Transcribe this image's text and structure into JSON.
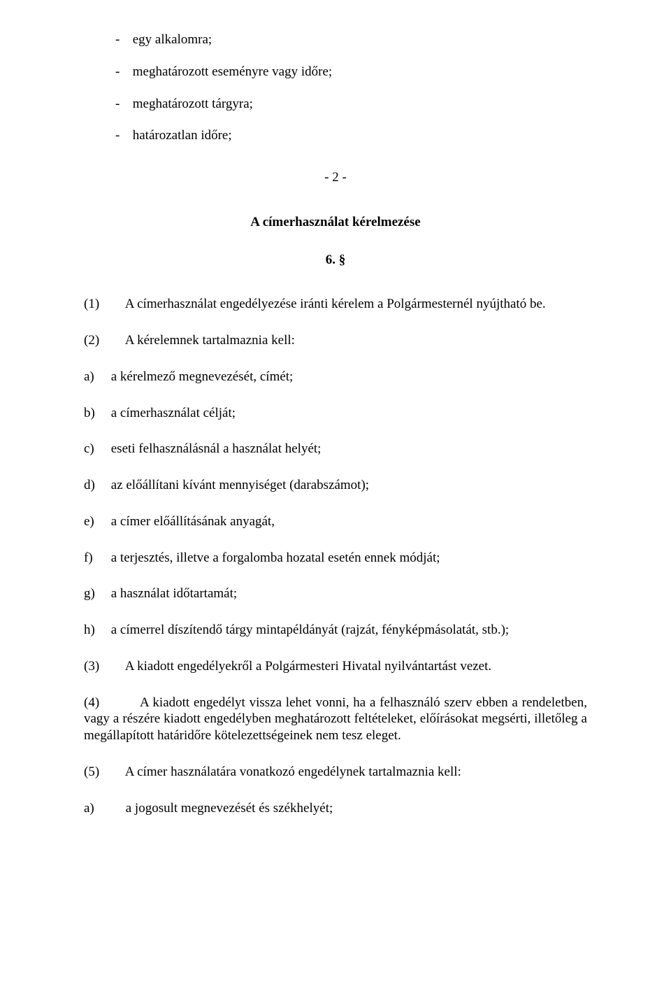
{
  "colors": {
    "text": "#000000",
    "background": "#ffffff"
  },
  "typography": {
    "family": "Times New Roman",
    "base_size_pt": 14
  },
  "dashItems": [
    "egy alkalomra;",
    "meghatározott eseményre vagy időre;",
    "meghatározott tárgyra;",
    "határozatlan időre;"
  ],
  "pageMarker": "- 2 -",
  "sectionTitle": "A címerhasználat kérelmezése",
  "sectionNumber": "6. §",
  "para1": {
    "num": "(1)",
    "text": "A címerhasználat engedélyezése iránti kérelem a Polgármesternél nyújtható be."
  },
  "para2": {
    "num": "(2)",
    "text": "A kérelemnek tartalmaznia kell:"
  },
  "letterItems": [
    {
      "letter": "a)",
      "text": "a kérelmező megnevezését, címét;"
    },
    {
      "letter": "b)",
      "text": "a címerhasználat célját;"
    },
    {
      "letter": "c)",
      "text": "eseti felhasználásnál a használat helyét;"
    },
    {
      "letter": "d)",
      "text": "az előállítani kívánt mennyiséget (darabszámot);"
    },
    {
      "letter": "e)",
      "text": "a címer előállításának anyagát,"
    },
    {
      "letter": "f)",
      "text": " a terjesztés, illetve a forgalomba hozatal esetén ennek módját;"
    },
    {
      "letter": "g)",
      "text": "a használat időtartamát;"
    },
    {
      "letter": "h)",
      "text": "a címerrel díszítendő tárgy mintapéldányát (rajzát, fényképmásolatát, stb.);"
    }
  ],
  "para3": {
    "num": "(3)",
    "text": "A kiadott engedélyekről a Polgármesteri Hivatal nyilvántartást vezet."
  },
  "para4": {
    "num": "(4)",
    "text": "A kiadott engedélyt vissza lehet vonni, ha a felhasználó szerv ebben a rendeletben, vagy a részére kiadott engedélyben meghatározott feltételeket, előírásokat megsérti, illetőleg a megállapított határidőre kötelezettségeinek nem tesz eleget."
  },
  "para5": {
    "num": "(5)",
    "text": "A címer használatára vonatkozó engedélynek tartalmaznia kell:"
  },
  "finalItem": {
    "letter": "a)",
    "text": "a jogosult megnevezését és székhelyét;"
  }
}
